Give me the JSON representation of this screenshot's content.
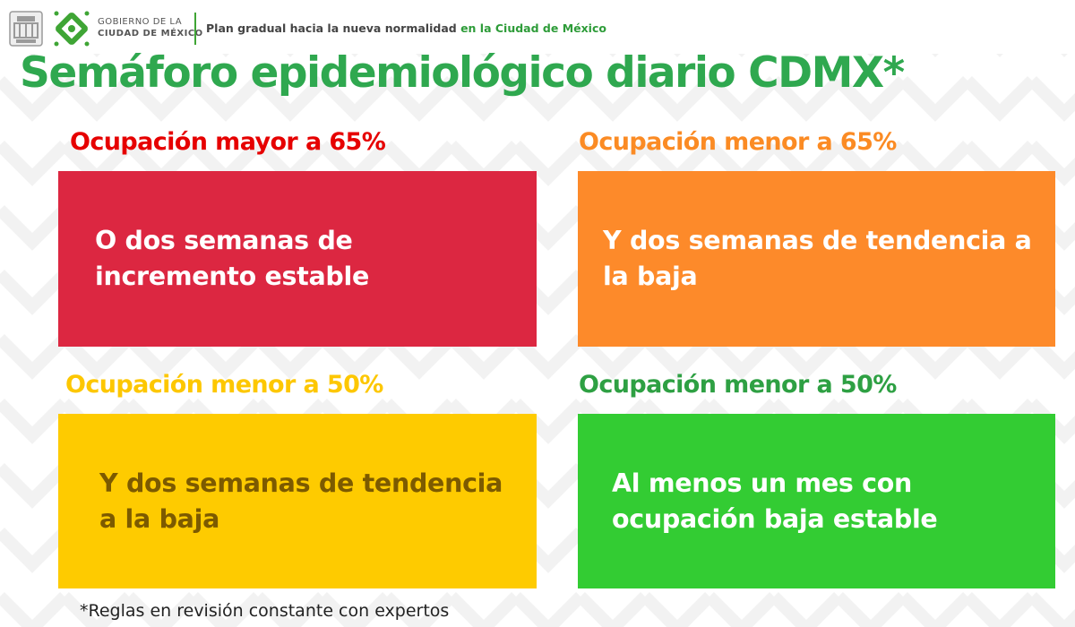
{
  "header": {
    "gov_line1": "GOBIERNO DE LA",
    "gov_line2": "CIUDAD DE MÉXICO",
    "plan_text": "Plan gradual hacia la nueva normalidad",
    "plan_text_highlight": "en la Ciudad de México"
  },
  "title": "Semáforo epidemiológico diario CDMX*",
  "cards": [
    {
      "label": "Ocupación mayor a 65%",
      "text": "O dos semanas de incremento estable",
      "label_color": "#e60000",
      "box_color": "#dc2741",
      "text_color": "#ffffff"
    },
    {
      "label": "Ocupación menor a 65%",
      "text": "Y dos semanas de tendencia a la baja",
      "label_color": "#fb8b24",
      "box_color": "#fd8a2a",
      "text_color": "#ffffff"
    },
    {
      "label": "Ocupación menor a 50%",
      "text": "Y dos semanas de tendencia a la baja",
      "label_color": "#fdc700",
      "box_color": "#fecb00",
      "text_color": "#7c5a00"
    },
    {
      "label": "Ocupación menor a 50%",
      "text": "Al menos un mes con ocupación baja estable",
      "label_color": "#2ea043",
      "box_color": "#33cc33",
      "text_color": "#ffffff"
    }
  ],
  "footnote": "*Reglas en revisión constante con expertos",
  "colors": {
    "title": "#2fa84f",
    "brand_green": "#2e9c39"
  },
  "icons": {
    "coat_of_arms": "coat-of-arms-icon",
    "gov_logo": "cdmx-logo-icon"
  }
}
